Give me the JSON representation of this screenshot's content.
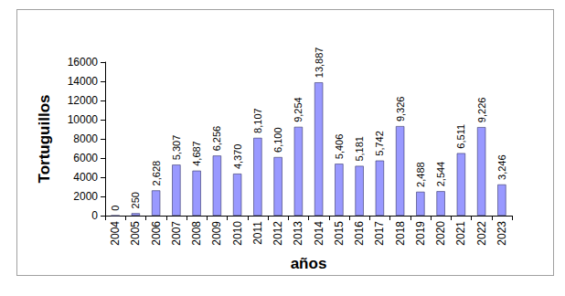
{
  "chart_data": {
    "type": "bar",
    "categories": [
      "2004",
      "2005",
      "2006",
      "2007",
      "2008",
      "2009",
      "2010",
      "2011",
      "2012",
      "2013",
      "2014",
      "2015",
      "2016",
      "2017",
      "2018",
      "2019",
      "2020",
      "2021",
      "2022",
      "2023"
    ],
    "values": [
      0,
      250,
      2628,
      5307,
      4687,
      6256,
      4370,
      8107,
      6100,
      9254,
      13887,
      5406,
      5181,
      5742,
      9326,
      2488,
      2544,
      6511,
      9226,
      3246
    ],
    "value_labels": [
      "0",
      "250",
      "2,628",
      "5,307",
      "4,687",
      "6,256",
      "4,370",
      "8,107",
      "6,100",
      "9,254",
      "13,887",
      "5,406",
      "5,181",
      "5,742",
      "9,326",
      "2,488",
      "2,544",
      "6,511",
      "9,226",
      "3,246"
    ],
    "color": "#9999ff",
    "x_label": "años",
    "y_label": "Tortuguillos",
    "ylim": [
      0,
      16000
    ],
    "yticks": [
      0,
      2000,
      4000,
      6000,
      8000,
      10000,
      12000,
      14000,
      16000
    ],
    "grid": false,
    "data_labels": true
  }
}
